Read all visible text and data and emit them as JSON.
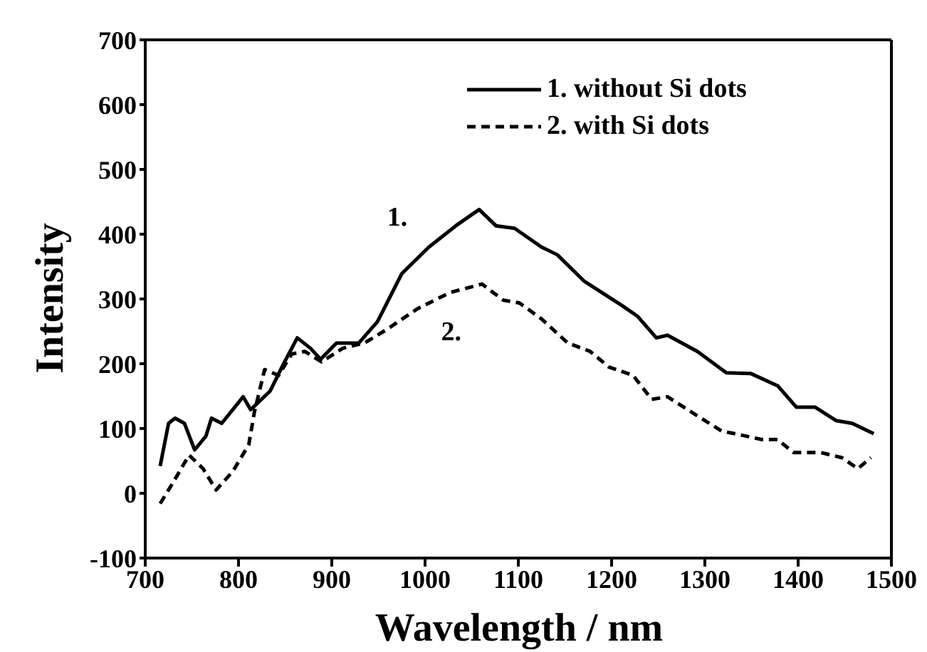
{
  "chart_data": {
    "type": "line",
    "xlabel": "Wavelength / nm",
    "ylabel": "Intensity",
    "xlim": [
      700,
      1500
    ],
    "xticks": [
      700,
      800,
      900,
      1000,
      1100,
      1200,
      1300,
      1400,
      1500
    ],
    "ylim": [
      -100,
      700
    ],
    "yticks": [
      -100,
      0,
      100,
      200,
      300,
      400,
      500,
      600,
      700
    ],
    "legend": "top right",
    "marker": "none",
    "annotations": [
      "1.",
      "2."
    ],
    "series": [
      {
        "name": "1. without Si dots",
        "color": "#000000",
        "line_style": "solid",
        "x": [
          716,
          725,
          732,
          742,
          753,
          765,
          771,
          782,
          805,
          813,
          834,
          848,
          863,
          877,
          888,
          905,
          929,
          949,
          975,
          1004,
          1033,
          1058,
          1076,
          1096,
          1125,
          1142,
          1171,
          1211,
          1228,
          1248,
          1260,
          1292,
          1323,
          1349,
          1378,
          1398,
          1418,
          1441,
          1458,
          1481
        ],
        "values": [
          42,
          108,
          116,
          108,
          67,
          88,
          116,
          108,
          149,
          129,
          158,
          199,
          240,
          224,
          207,
          232,
          232,
          265,
          339,
          380,
          413,
          438,
          413,
          409,
          380,
          368,
          327,
          290,
          273,
          240,
          244,
          219,
          186,
          185,
          166,
          133,
          133,
          112,
          108,
          92
        ]
      },
      {
        "name": "2. with Si dots",
        "color": "#000000",
        "line_style": "dashed",
        "x": [
          716,
          730,
          747,
          762,
          776,
          794,
          811,
          817,
          828,
          843,
          857,
          871,
          889,
          912,
          935,
          958,
          992,
          1027,
          1061,
          1084,
          1101,
          1125,
          1153,
          1177,
          1197,
          1223,
          1243,
          1260,
          1286,
          1318,
          1332,
          1361,
          1378,
          1395,
          1424,
          1447,
          1464,
          1478
        ],
        "values": [
          -16,
          17,
          59,
          38,
          5,
          34,
          75,
          125,
          191,
          182,
          215,
          219,
          203,
          224,
          232,
          252,
          285,
          310,
          323,
          298,
          294,
          269,
          232,
          219,
          195,
          182,
          145,
          149,
          125,
          96,
          92,
          83,
          83,
          63,
          63,
          55,
          38,
          55
        ]
      }
    ]
  }
}
